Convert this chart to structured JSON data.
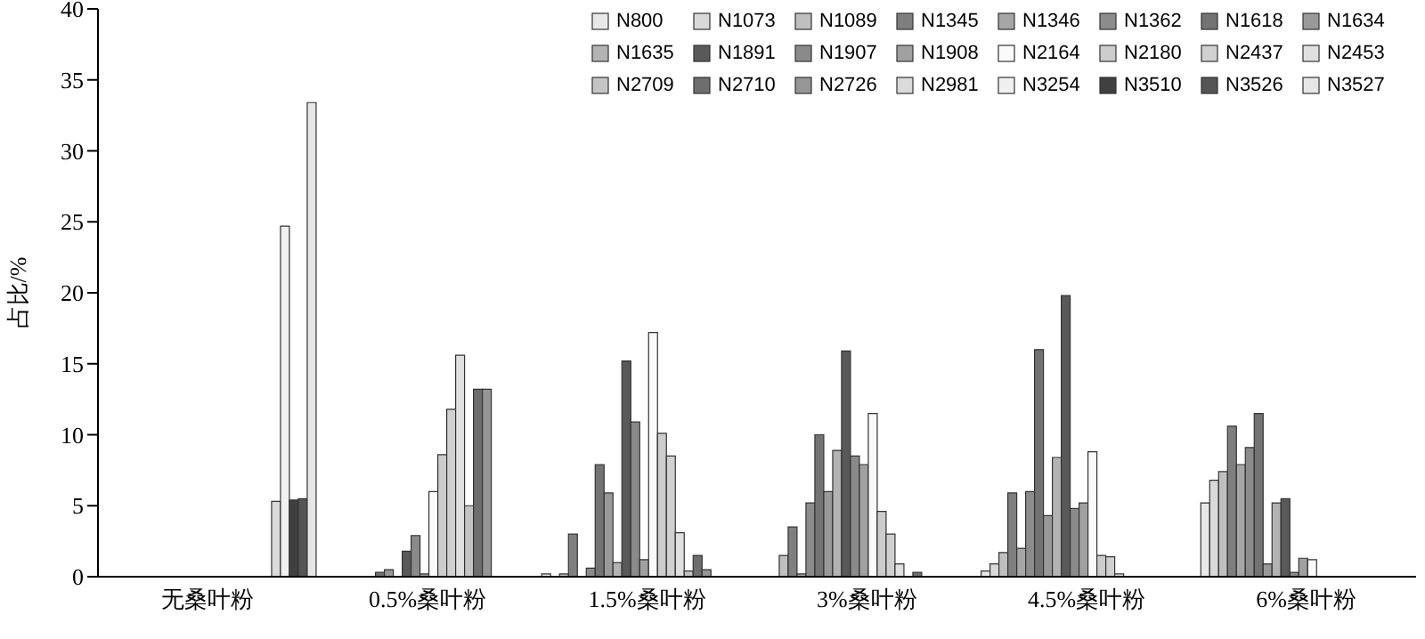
{
  "chart_data": {
    "type": "bar",
    "ylabel": "占比/%",
    "categories": [
      "无桑叶粉",
      "0.5%桑叶粉",
      "1.5%桑叶粉",
      "3%桑叶粉",
      "4.5%桑叶粉",
      "6%桑叶粉"
    ],
    "series": [
      {
        "name": "N800",
        "color": "#e8e8e8",
        "values": [
          null,
          null,
          0.2,
          null,
          0.4,
          5.2
        ]
      },
      {
        "name": "N1073",
        "color": "#d9d9d9",
        "values": [
          null,
          null,
          null,
          null,
          0.9,
          6.8
        ]
      },
      {
        "name": "N1089",
        "color": "#bfbfbf",
        "values": [
          null,
          null,
          0.2,
          1.5,
          1.7,
          7.4
        ]
      },
      {
        "name": "N1345",
        "color": "#7f7f7f",
        "values": [
          null,
          null,
          3.0,
          3.5,
          5.9,
          10.6
        ]
      },
      {
        "name": "N1346",
        "color": "#a6a6a6",
        "values": [
          null,
          null,
          null,
          0.2,
          2.0,
          7.9
        ]
      },
      {
        "name": "N1362",
        "color": "#8c8c8c",
        "values": [
          null,
          null,
          0.6,
          5.2,
          6.0,
          9.1
        ]
      },
      {
        "name": "N1618",
        "color": "#737373",
        "values": [
          null,
          0.3,
          7.9,
          10.0,
          16.0,
          11.5
        ]
      },
      {
        "name": "N1634",
        "color": "#999999",
        "values": [
          null,
          0.5,
          5.9,
          6.0,
          4.3,
          0.9
        ]
      },
      {
        "name": "N1635",
        "color": "#b3b3b3",
        "values": [
          null,
          null,
          1.0,
          8.9,
          8.4,
          5.2
        ]
      },
      {
        "name": "N1891",
        "color": "#595959",
        "values": [
          null,
          1.8,
          15.2,
          15.9,
          19.8,
          5.5
        ]
      },
      {
        "name": "N1907",
        "color": "#8a8a8a",
        "values": [
          null,
          2.9,
          10.9,
          8.5,
          4.8,
          0.3
        ]
      },
      {
        "name": "N1908",
        "color": "#a0a0a0",
        "values": [
          null,
          0.2,
          1.2,
          7.9,
          5.2,
          1.3
        ]
      },
      {
        "name": "N2164",
        "color": "#fafafa",
        "values": [
          null,
          6.0,
          17.2,
          11.5,
          8.8,
          1.2
        ]
      },
      {
        "name": "N2180",
        "color": "#cccccc",
        "values": [
          null,
          8.6,
          10.1,
          4.6,
          1.5,
          null
        ]
      },
      {
        "name": "N2437",
        "color": "#d0d0d0",
        "values": [
          null,
          11.8,
          8.5,
          3.0,
          1.4,
          null
        ]
      },
      {
        "name": "N2453",
        "color": "#e0e0e0",
        "values": [
          null,
          15.6,
          3.1,
          0.9,
          0.2,
          null
        ]
      },
      {
        "name": "N2709",
        "color": "#c4c4c4",
        "values": [
          null,
          5.0,
          0.4,
          null,
          null,
          null
        ]
      },
      {
        "name": "N2710",
        "color": "#6e6e6e",
        "values": [
          null,
          13.2,
          1.5,
          0.3,
          null,
          null
        ]
      },
      {
        "name": "N2726",
        "color": "#969696",
        "values": [
          null,
          13.2,
          0.5,
          null,
          null,
          null
        ]
      },
      {
        "name": "N2981",
        "color": "#dadada",
        "values": [
          5.3,
          null,
          null,
          null,
          null,
          null
        ]
      },
      {
        "name": "N3254",
        "color": "#f0f0f0",
        "values": [
          24.7,
          null,
          null,
          null,
          null,
          null
        ]
      },
      {
        "name": "N3510",
        "color": "#404040",
        "values": [
          5.4,
          null,
          null,
          null,
          null,
          null
        ]
      },
      {
        "name": "N3526",
        "color": "#555555",
        "values": [
          5.5,
          null,
          null,
          null,
          null,
          null
        ]
      },
      {
        "name": "N3527",
        "color": "#e6e6e6",
        "values": [
          33.4,
          null,
          null,
          null,
          null,
          null
        ]
      }
    ],
    "ylim": [
      0,
      40
    ],
    "yticks": [
      0,
      5,
      10,
      15,
      20,
      25,
      30,
      35,
      40
    ],
    "grid": false,
    "legend": "top right"
  }
}
